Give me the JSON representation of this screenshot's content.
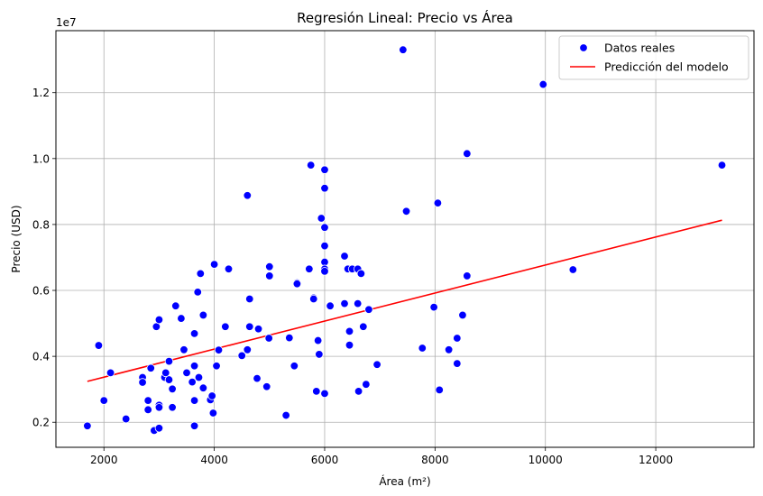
{
  "chart_data": {
    "type": "scatter",
    "title": "Regresión Lineal: Precio vs Área",
    "xlabel": "Área (m²)",
    "ylabel": "Precio (USD)",
    "y_offset_label": "1e7",
    "xlim": [
      1130,
      13780
    ],
    "ylim": [
      1240000,
      13880000
    ],
    "xticks": [
      2000,
      4000,
      6000,
      8000,
      10000,
      12000
    ],
    "xtick_labels": [
      "2000",
      "4000",
      "6000",
      "8000",
      "10000",
      "12000"
    ],
    "yticks": [
      2000000,
      4000000,
      6000000,
      8000000,
      10000000,
      12000000
    ],
    "ytick_labels": [
      "0.2",
      "0.4",
      "0.6",
      "0.8",
      "1.0",
      "1.2"
    ],
    "grid": true,
    "legend_position": "top-right",
    "colors": {
      "scatter": "#0000ff",
      "line": "#ff0000"
    },
    "series": [
      {
        "name": "Datos reales",
        "kind": "scatter",
        "points": [
          [
            1700,
            1890000
          ],
          [
            1905,
            4330000
          ],
          [
            2000,
            2660000
          ],
          [
            2120,
            3500000
          ],
          [
            2400,
            2100000
          ],
          [
            2700,
            3360000
          ],
          [
            2700,
            3210000
          ],
          [
            2800,
            2660000
          ],
          [
            2800,
            2380000
          ],
          [
            2850,
            3640000
          ],
          [
            2910,
            1750000
          ],
          [
            2950,
            4900000
          ],
          [
            3000,
            5110000
          ],
          [
            3000,
            2520000
          ],
          [
            3000,
            1820000
          ],
          [
            3000,
            2450000
          ],
          [
            3100,
            3360000
          ],
          [
            3120,
            3500000
          ],
          [
            3180,
            3290000
          ],
          [
            3180,
            3850000
          ],
          [
            3240,
            3010000
          ],
          [
            3240,
            2450000
          ],
          [
            3300,
            5530000
          ],
          [
            3400,
            5150000
          ],
          [
            3450,
            4200000
          ],
          [
            3500,
            3500000
          ],
          [
            3600,
            3220000
          ],
          [
            3640,
            2660000
          ],
          [
            3640,
            4690000
          ],
          [
            3640,
            1890000
          ],
          [
            3640,
            3710000
          ],
          [
            3700,
            5950000
          ],
          [
            3720,
            3360000
          ],
          [
            3750,
            6510000
          ],
          [
            3800,
            5250000
          ],
          [
            3800,
            3040000
          ],
          [
            3930,
            2680000
          ],
          [
            3960,
            2800000
          ],
          [
            3980,
            2280000
          ],
          [
            4000,
            6790000
          ],
          [
            4040,
            3710000
          ],
          [
            4080,
            4190000
          ],
          [
            4200,
            4900000
          ],
          [
            4260,
            6650000
          ],
          [
            4500,
            4020000
          ],
          [
            4600,
            8880000
          ],
          [
            4600,
            4200000
          ],
          [
            4640,
            5740000
          ],
          [
            4640,
            4900000
          ],
          [
            4775,
            3330000
          ],
          [
            4800,
            4830000
          ],
          [
            4950,
            3080000
          ],
          [
            4990,
            4550000
          ],
          [
            5000,
            6720000
          ],
          [
            5000,
            6440000
          ],
          [
            5300,
            2210000
          ],
          [
            5360,
            4560000
          ],
          [
            5450,
            3710000
          ],
          [
            5500,
            6230000
          ],
          [
            5500,
            6200000
          ],
          [
            5720,
            6650000
          ],
          [
            5750,
            9800000
          ],
          [
            5800,
            5770000
          ],
          [
            5800,
            5740000
          ],
          [
            5850,
            2940000
          ],
          [
            5880,
            4480000
          ],
          [
            5900,
            4060000
          ],
          [
            5940,
            8190000
          ],
          [
            6000,
            9100000
          ],
          [
            6000,
            9660000
          ],
          [
            6000,
            7910000
          ],
          [
            6000,
            7350000
          ],
          [
            6000,
            6860000
          ],
          [
            6000,
            6650000
          ],
          [
            6000,
            6580000
          ],
          [
            6000,
            2870000
          ],
          [
            6100,
            5530000
          ],
          [
            6360,
            7040000
          ],
          [
            6360,
            5600000
          ],
          [
            6420,
            6650000
          ],
          [
            6450,
            4760000
          ],
          [
            6450,
            4340000
          ],
          [
            6500,
            6650000
          ],
          [
            6600,
            6650000
          ],
          [
            6600,
            5600000
          ],
          [
            6615,
            2940000
          ],
          [
            6660,
            6510000
          ],
          [
            6700,
            4900000
          ],
          [
            6750,
            3150000
          ],
          [
            6800,
            5420000
          ],
          [
            6950,
            3750000
          ],
          [
            7420,
            13300000
          ],
          [
            7480,
            8400000
          ],
          [
            7770,
            4250000
          ],
          [
            7980,
            5490000
          ],
          [
            8050,
            8650000
          ],
          [
            8080,
            2980000
          ],
          [
            8250,
            4200000
          ],
          [
            8400,
            4550000
          ],
          [
            8400,
            3780000
          ],
          [
            8500,
            5250000
          ],
          [
            8580,
            10150000
          ],
          [
            8580,
            6440000
          ],
          [
            9960,
            12250000
          ],
          [
            10500,
            6630000
          ],
          [
            13200,
            9800000
          ]
        ]
      },
      {
        "name": "Predicción del modelo",
        "kind": "line",
        "points": [
          [
            1700,
            3240000
          ],
          [
            13200,
            8130000
          ]
        ]
      }
    ]
  }
}
